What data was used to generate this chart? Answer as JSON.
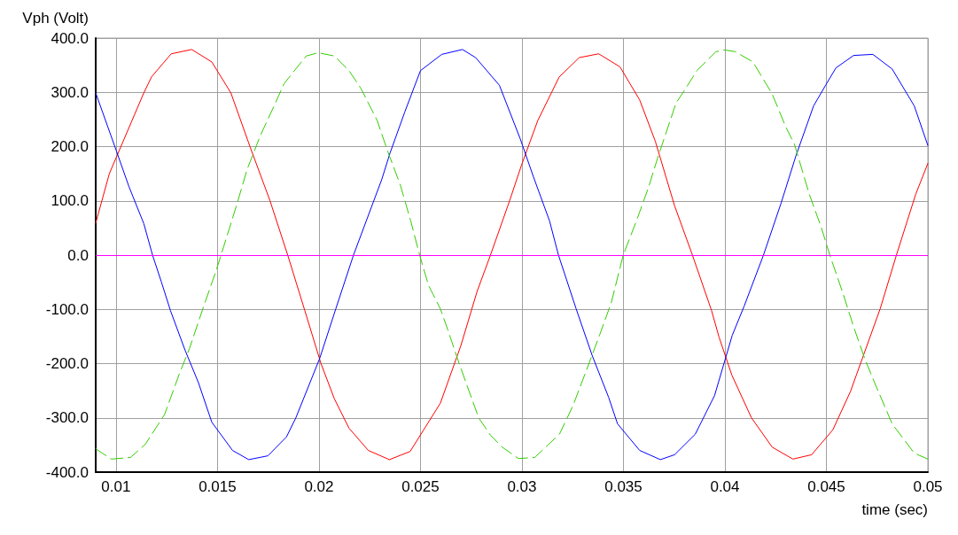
{
  "chart_data": {
    "type": "line",
    "xlabel": "time (sec)",
    "ylabel": "Vph (Volt)",
    "xlim": [
      0.009,
      0.05
    ],
    "xticks": [
      0.01,
      0.015,
      0.02,
      0.025,
      0.03,
      0.035,
      0.04,
      0.045,
      0.05
    ],
    "ylim": [
      -400,
      400
    ],
    "yticks": [
      {
        "value": -400,
        "label": "-400.0"
      },
      {
        "value": -300,
        "label": "-300.0"
      },
      {
        "value": -200,
        "label": "-200.0"
      },
      {
        "value": -100,
        "label": "-100.0"
      },
      {
        "value": 0,
        "label": "0.0"
      },
      {
        "value": 100,
        "label": "100.0"
      },
      {
        "value": 200,
        "label": "200.0"
      },
      {
        "value": 300,
        "label": "300.0"
      },
      {
        "value": 400,
        "label": "400.0"
      }
    ],
    "grid": true,
    "marker": "none",
    "ref_lines": [
      {
        "axis": "y",
        "value": 0,
        "color": "#ff00ff"
      }
    ],
    "series": [
      {
        "color": "#ff0000",
        "line_style": "solid",
        "x": [
          0.009,
          0.00967,
          0.01137,
          0.01176,
          0.01272,
          0.01373,
          0.01472,
          0.01566,
          0.01661,
          0.01758,
          0.01846,
          0.0193,
          0.0201,
          0.02076,
          0.02148,
          0.02243,
          0.02347,
          0.02449,
          0.02598,
          0.02699,
          0.02779,
          0.02845,
          0.0294,
          0.02998,
          0.03078,
          0.03183,
          0.03282,
          0.03378,
          0.03483,
          0.0358,
          0.03657,
          0.03752,
          0.0384,
          0.03934,
          0.03971,
          0.04034,
          0.04131,
          0.04233,
          0.04335,
          0.04427,
          0.04532,
          0.04619,
          0.04765,
          0.04845,
          0.0494,
          0.05
        ],
        "values": [
          59,
          150,
          299,
          329,
          371,
          379,
          356,
          299,
          199,
          101,
          0,
          -102,
          -200,
          -265,
          -319,
          -360,
          -377,
          -362,
          -273,
          -167,
          -67,
          0,
          101,
          166,
          248,
          328,
          364,
          371,
          347,
          286,
          210,
          91,
          0,
          -102,
          -151,
          -221,
          -300,
          -354,
          -376,
          -368,
          -322,
          -251,
          -99,
          0,
          112,
          169
        ]
      },
      {
        "color": "#0000ff",
        "line_style": "solid",
        "x": [
          0.009,
          0.01,
          0.01064,
          0.01137,
          0.0118,
          0.01224,
          0.01268,
          0.0134,
          0.01406,
          0.01472,
          0.01574,
          0.01654,
          0.01748,
          0.0184,
          0.01886,
          0.02003,
          0.02083,
          0.0217,
          0.02309,
          0.0235,
          0.02423,
          0.025,
          0.02605,
          0.02707,
          0.02772,
          0.02889,
          0.02991,
          0.03056,
          0.03136,
          0.0318,
          0.03267,
          0.03347,
          0.03427,
          0.03471,
          0.0358,
          0.03682,
          0.03752,
          0.03854,
          0.03949,
          0.04036,
          0.04095,
          0.0419,
          0.04277,
          0.0435,
          0.04437,
          0.04496,
          0.04547,
          0.04634,
          0.04729,
          0.04824,
          0.04933,
          0.05
        ],
        "values": [
          299,
          194,
          126,
          58,
          0,
          -50,
          -102,
          -175,
          -235,
          -308,
          -360,
          -377,
          -370,
          -335,
          -300,
          -191,
          -99,
          0,
          139,
          188,
          264,
          340,
          370,
          379,
          364,
          313,
          215,
          145,
          63,
          0,
          -99,
          -186,
          -262,
          -311,
          -360,
          -377,
          -368,
          -330,
          -259,
          -148,
          -94,
          0,
          96,
          183,
          275,
          313,
          345,
          368,
          370,
          343,
          275,
          202
        ]
      },
      {
        "color": "#33cc00",
        "line_style": "dashed",
        "x": [
          0.009,
          0.00977,
          0.01071,
          0.01144,
          0.01239,
          0.01312,
          0.01362,
          0.01435,
          0.01493,
          0.0153,
          0.01595,
          0.01646,
          0.01712,
          0.01785,
          0.01828,
          0.01937,
          0.01996,
          0.02076,
          0.02148,
          0.02207,
          0.02287,
          0.02336,
          0.02401,
          0.02452,
          0.02496,
          0.0254,
          0.02598,
          0.02634,
          0.02678,
          0.02729,
          0.02787,
          0.02845,
          0.02903,
          0.02983,
          0.03063,
          0.03185,
          0.03251,
          0.03317,
          0.03382,
          0.0344,
          0.03499,
          0.03564,
          0.03622,
          0.03672,
          0.03708,
          0.03759,
          0.03803,
          0.03862,
          0.03956,
          0.04,
          0.04051,
          0.04138,
          0.04233,
          0.04299,
          0.04343,
          0.04416,
          0.04474,
          0.04517,
          0.04583,
          0.04634,
          0.04692,
          0.04743,
          0.04824,
          0.04933,
          0.05
        ],
        "values": [
          -357,
          -376,
          -373,
          -349,
          -294,
          -219,
          -172,
          -91,
          -29,
          15,
          93,
          158,
          221,
          280,
          316,
          367,
          373,
          367,
          340,
          307,
          248,
          194,
          129,
          63,
          0,
          -56,
          -99,
          -137,
          -186,
          -240,
          -300,
          -332,
          -354,
          -375,
          -373,
          -330,
          -278,
          -213,
          -148,
          -88,
          0,
          63,
          123,
          183,
          223,
          280,
          305,
          340,
          375,
          378,
          375,
          356,
          297,
          237,
          204,
          112,
          52,
          0,
          -72,
          -132,
          -194,
          -240,
          -311,
          -365,
          -376
        ]
      }
    ]
  }
}
